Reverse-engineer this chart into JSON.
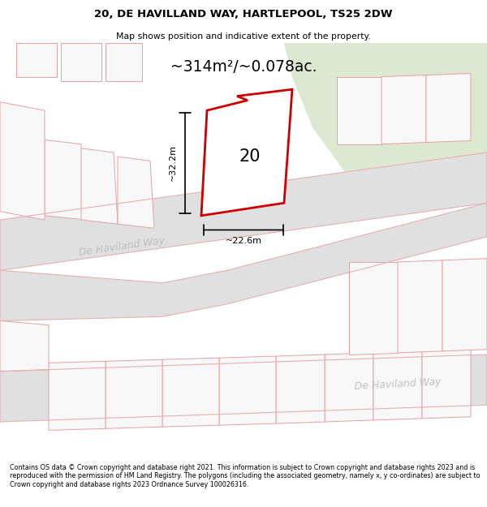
{
  "title": "20, DE HAVILLAND WAY, HARTLEPOOL, TS25 2DW",
  "subtitle": "Map shows position and indicative extent of the property.",
  "area_text": "~314m²/~0.078ac.",
  "label_20": "20",
  "dim_height": "~32.2m",
  "dim_width": "~22.6m",
  "street_label1": "De Haviland Way",
  "street_label2": "De Haviland Way",
  "footer": "Contains OS data © Crown copyright and database right 2021. This information is subject to Crown copyright and database rights 2023 and is reproduced with the permission of HM Land Registry. The polygons (including the associated geometry, namely x, y co-ordinates) are subject to Crown copyright and database rights 2023 Ordnance Survey 100026316.",
  "bg_color": "#f0f0f0",
  "road_color": "#e0e0e0",
  "road_outline_color": "#e8b0b0",
  "plot_fill": "#f8f8f8",
  "plot_outline": "#e8a0a0",
  "highlight_color": "#cc0000",
  "green_fill": "#dde8d0",
  "figsize": [
    6.0,
    6.25
  ],
  "dpi": 100
}
